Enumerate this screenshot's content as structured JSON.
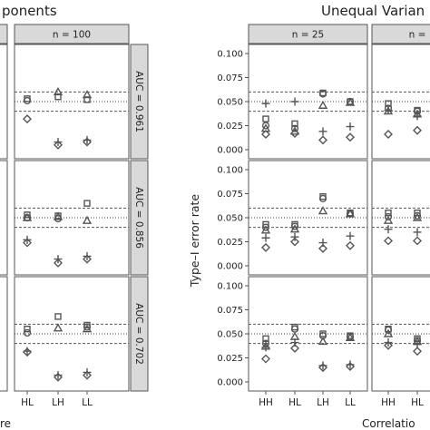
{
  "chart_data": {
    "type": "scatter",
    "title_left": "ponents",
    "title_right": "Unequal Varian",
    "ylabel": "Type–I error rate",
    "xlabel_left": "re",
    "xlabel_right": "Correlatio",
    "categories": [
      "HH",
      "HL",
      "LH",
      "LL"
    ],
    "ylim": [
      0,
      0.1
    ],
    "yticks": [
      "0.000",
      "0.025",
      "0.050",
      "0.075",
      "0.100"
    ],
    "reference_lines": {
      "dashed": [
        0.04,
        0.06
      ],
      "dotted": 0.05
    },
    "strips": {
      "top_left": "n = 100",
      "top_mid": "n = 25",
      "top_right": "n ="
    },
    "auc_labels": [
      "AUC = 0.961",
      "AUC = 0.856",
      "AUC = 0.702"
    ],
    "marker_legend_note": "square, circle, triangle, plus, diamond",
    "panels": [
      {
        "name": "left-row1",
        "series": {
          "square": [
            null,
            0.053,
            0.055,
            0.052
          ],
          "circle": [
            0.048,
            0.051,
            null,
            null
          ],
          "triangle": [
            null,
            null,
            0.06,
            0.057
          ],
          "plus": [
            0.021,
            null,
            0.008,
            0.01
          ],
          "diamond": [
            0.014,
            0.032,
            0.005,
            0.008
          ]
        }
      },
      {
        "name": "left-row2",
        "series": {
          "square": [
            0.06,
            0.053,
            0.052,
            0.065
          ],
          "circle": [
            0.059,
            0.05,
            0.049,
            null
          ],
          "triangle": [
            null,
            0.05,
            0.051,
            0.047
          ],
          "plus": [
            0.034,
            0.027,
            0.007,
            0.01
          ],
          "diamond": [
            0.032,
            0.024,
            0.003,
            0.007
          ]
        }
      },
      {
        "name": "left-row3",
        "series": {
          "square": [
            0.052,
            0.055,
            0.068,
            0.059
          ],
          "circle": [
            0.05,
            0.051,
            null,
            0.057
          ],
          "triangle": [
            null,
            null,
            0.056,
            0.055
          ],
          "plus": [
            0.034,
            0.032,
            0.007,
            0.01
          ],
          "diamond": [
            0.032,
            0.031,
            0.005,
            0.007
          ]
        }
      },
      {
        "name": "mid-row1",
        "series": {
          "square": [
            0.032,
            0.027,
            0.059,
            0.05
          ],
          "circle": [
            0.025,
            0.022,
            0.058,
            0.05
          ],
          "triangle": [
            0.022,
            0.019,
            0.046,
            0.049
          ],
          "plus": [
            0.048,
            0.05,
            0.019,
            0.024
          ],
          "diamond": [
            0.016,
            0.017,
            0.01,
            0.013
          ]
        }
      },
      {
        "name": "mid-row2",
        "series": {
          "square": [
            0.043,
            0.043,
            0.072,
            0.055
          ],
          "circle": [
            0.04,
            0.041,
            0.07,
            0.054
          ],
          "triangle": [
            0.037,
            0.038,
            0.057,
            0.054
          ],
          "plus": [
            0.029,
            0.03,
            0.024,
            0.031
          ],
          "diamond": [
            0.019,
            0.025,
            0.018,
            0.021
          ]
        }
      },
      {
        "name": "mid-row3",
        "series": {
          "square": [
            0.045,
            0.057,
            0.05,
            0.048
          ],
          "circle": [
            0.04,
            0.055,
            0.048,
            0.047
          ],
          "triangle": [
            0.037,
            0.047,
            0.042,
            0.046
          ],
          "plus": [
            0.036,
            0.041,
            0.017,
            0.018
          ],
          "diamond": [
            0.024,
            0.035,
            0.015,
            0.016
          ]
        }
      },
      {
        "name": "right-row1",
        "series": {
          "square": [
            0.048,
            0.041,
            null,
            null
          ],
          "circle": [
            0.043,
            0.04,
            null,
            null
          ],
          "triangle": [
            0.04,
            0.037,
            null,
            null
          ],
          "plus": [
            0.041,
            0.035,
            null,
            null
          ],
          "diamond": [
            0.016,
            0.02,
            null,
            null
          ]
        }
      },
      {
        "name": "right-row2",
        "series": {
          "square": [
            0.055,
            0.055,
            null,
            null
          ],
          "circle": [
            0.051,
            0.052,
            null,
            null
          ],
          "triangle": [
            0.047,
            0.05,
            null,
            null
          ],
          "plus": [
            0.038,
            0.035,
            null,
            null
          ],
          "diamond": [
            0.026,
            0.026,
            null,
            null
          ]
        }
      },
      {
        "name": "right-row3",
        "series": {
          "square": [
            0.055,
            0.045,
            null,
            null
          ],
          "circle": [
            0.054,
            0.043,
            null,
            null
          ],
          "triangle": [
            0.05,
            0.042,
            null,
            null
          ],
          "plus": [
            0.041,
            0.039,
            null,
            null
          ],
          "diamond": [
            0.038,
            0.032,
            null,
            null
          ]
        }
      }
    ]
  }
}
